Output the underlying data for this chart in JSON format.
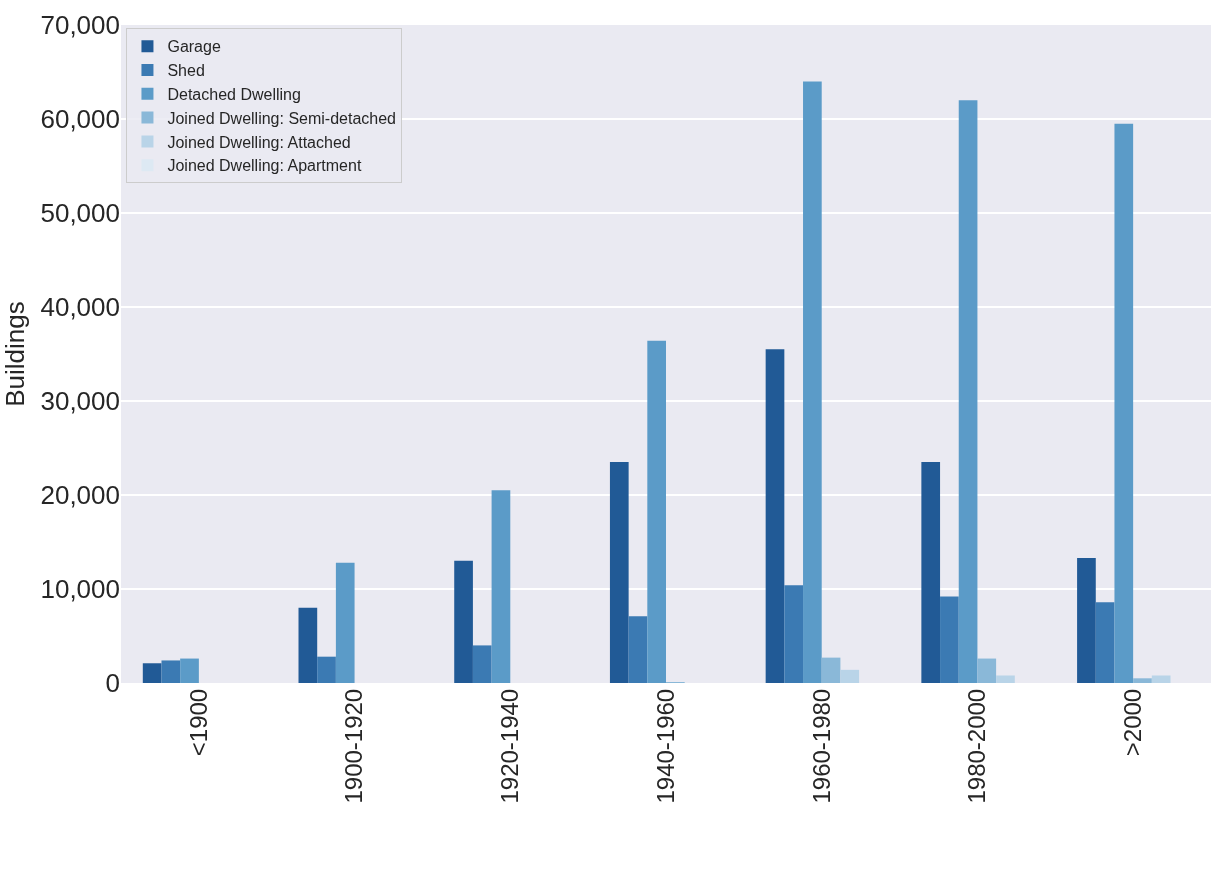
{
  "chart_data": {
    "type": "bar",
    "ylabel": "Buildings",
    "categories": [
      "<1900",
      "1900-1920",
      "1920-1940",
      "1940-1960",
      "1960-1980",
      "1980-2000",
      ">2000"
    ],
    "series": [
      {
        "name": "Garage",
        "color": "#215a96",
        "values": [
          2100,
          8000,
          13000,
          23500,
          35500,
          23500,
          13300
        ]
      },
      {
        "name": "Shed",
        "color": "#3b7ab3",
        "values": [
          2400,
          2800,
          4000,
          7100,
          10400,
          9200,
          8600
        ]
      },
      {
        "name": "Detached Dwelling",
        "color": "#5b9bc8",
        "values": [
          2600,
          12800,
          20500,
          36400,
          64000,
          62000,
          59500
        ]
      },
      {
        "name": "Joined Dwelling: Semi-detached",
        "color": "#8ab8d8",
        "values": [
          0,
          0,
          0,
          100,
          2700,
          2600,
          500
        ]
      },
      {
        "name": "Joined Dwelling: Attached",
        "color": "#b9d4e8",
        "values": [
          0,
          0,
          0,
          0,
          1400,
          800,
          800
        ]
      },
      {
        "name": "Joined Dwelling: Apartment",
        "color": "#dde9f3",
        "values": [
          0,
          0,
          0,
          0,
          0,
          0,
          0
        ]
      }
    ],
    "ylim": [
      0,
      70000
    ],
    "yticks": [
      {
        "value": 0,
        "label": "0"
      },
      {
        "value": 10000,
        "label": "10,000"
      },
      {
        "value": 20000,
        "label": "20,000"
      },
      {
        "value": 30000,
        "label": "30,000"
      },
      {
        "value": 40000,
        "label": "40,000"
      },
      {
        "value": 50000,
        "label": "50,000"
      },
      {
        "value": 60000,
        "label": "60,000"
      },
      {
        "value": 70000,
        "label": "70,000"
      }
    ],
    "grid": "y",
    "legend": "top left"
  }
}
